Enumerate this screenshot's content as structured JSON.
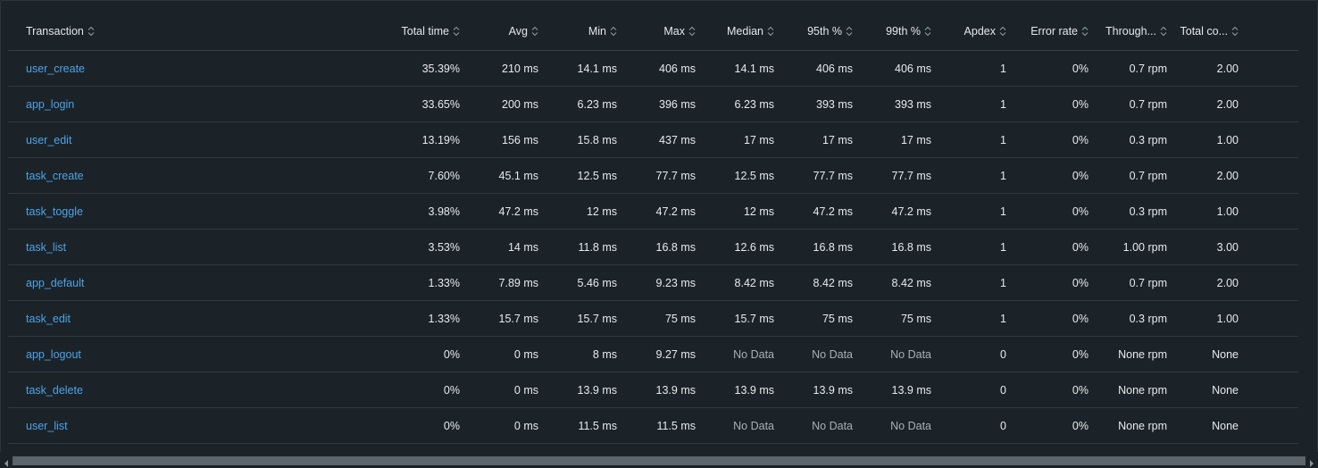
{
  "table": {
    "columns": [
      "Transaction",
      "Total time",
      "Avg",
      "Min",
      "Max",
      "Median",
      "95th %",
      "99th %",
      "Apdex",
      "Error rate",
      "Through...",
      "Total co..."
    ],
    "rows": [
      [
        "user_create",
        "35.39%",
        "210 ms",
        "14.1 ms",
        "406 ms",
        "14.1 ms",
        "406 ms",
        "406 ms",
        "1",
        "0%",
        "0.7 rpm",
        "2.00"
      ],
      [
        "app_login",
        "33.65%",
        "200 ms",
        "6.23 ms",
        "396 ms",
        "6.23 ms",
        "393 ms",
        "393 ms",
        "1",
        "0%",
        "0.7 rpm",
        "2.00"
      ],
      [
        "user_edit",
        "13.19%",
        "156 ms",
        "15.8 ms",
        "437 ms",
        "17 ms",
        "17 ms",
        "17 ms",
        "1",
        "0%",
        "0.3 rpm",
        "1.00"
      ],
      [
        "task_create",
        "7.60%",
        "45.1 ms",
        "12.5 ms",
        "77.7 ms",
        "12.5 ms",
        "77.7 ms",
        "77.7 ms",
        "1",
        "0%",
        "0.7 rpm",
        "2.00"
      ],
      [
        "task_toggle",
        "3.98%",
        "47.2 ms",
        "12 ms",
        "47.2 ms",
        "12 ms",
        "47.2 ms",
        "47.2 ms",
        "1",
        "0%",
        "0.3 rpm",
        "1.00"
      ],
      [
        "task_list",
        "3.53%",
        "14 ms",
        "11.8 ms",
        "16.8 ms",
        "12.6 ms",
        "16.8 ms",
        "16.8 ms",
        "1",
        "0%",
        "1.00 rpm",
        "3.00"
      ],
      [
        "app_default",
        "1.33%",
        "7.89 ms",
        "5.46 ms",
        "9.23 ms",
        "8.42 ms",
        "8.42 ms",
        "8.42 ms",
        "1",
        "0%",
        "0.7 rpm",
        "2.00"
      ],
      [
        "task_edit",
        "1.33%",
        "15.7 ms",
        "15.7 ms",
        "75 ms",
        "15.7 ms",
        "75 ms",
        "75 ms",
        "1",
        "0%",
        "0.3 rpm",
        "1.00"
      ],
      [
        "app_logout",
        "0%",
        "0 ms",
        "8 ms",
        "9.27 ms",
        "No Data",
        "No Data",
        "No Data",
        "0",
        "0%",
        "None rpm",
        "None"
      ],
      [
        "task_delete",
        "0%",
        "0 ms",
        "13.9 ms",
        "13.9 ms",
        "13.9 ms",
        "13.9 ms",
        "13.9 ms",
        "0",
        "0%",
        "None rpm",
        "None"
      ],
      [
        "user_list",
        "0%",
        "0 ms",
        "11.5 ms",
        "11.5 ms",
        "No Data",
        "No Data",
        "No Data",
        "0",
        "0%",
        "None rpm",
        "None"
      ]
    ],
    "no_data_text": "No Data"
  },
  "icons": {
    "sort": "sort-updown-icon",
    "scroll_left": "chevron-left-icon",
    "scroll_right": "chevron-right-icon"
  },
  "colors": {
    "background": "#1b2329",
    "link": "#4da3e6",
    "text": "#e8eaec",
    "muted": "#a7b0b6",
    "border": "#2f3a41"
  }
}
